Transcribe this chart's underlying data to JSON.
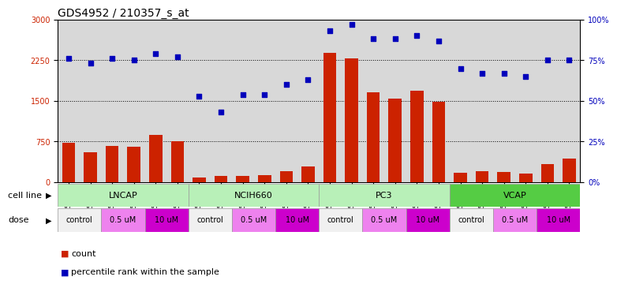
{
  "title": "GDS4952 / 210357_s_at",
  "samples": [
    "GSM1359772",
    "GSM1359773",
    "GSM1359774",
    "GSM1359775",
    "GSM1359776",
    "GSM1359777",
    "GSM1359760",
    "GSM1359761",
    "GSM1359762",
    "GSM1359763",
    "GSM1359764",
    "GSM1359765",
    "GSM1359778",
    "GSM1359779",
    "GSM1359780",
    "GSM1359781",
    "GSM1359782",
    "GSM1359783",
    "GSM1359766",
    "GSM1359767",
    "GSM1359768",
    "GSM1359769",
    "GSM1359770",
    "GSM1359771"
  ],
  "counts": [
    730,
    560,
    670,
    660,
    870,
    760,
    90,
    120,
    110,
    130,
    200,
    290,
    2380,
    2280,
    1660,
    1540,
    1690,
    1480,
    180,
    200,
    185,
    155,
    340,
    430
  ],
  "percentiles": [
    76,
    73,
    76,
    75,
    79,
    77,
    53,
    43,
    54,
    54,
    60,
    63,
    93,
    97,
    88,
    88,
    90,
    87,
    70,
    67,
    67,
    65,
    75,
    75
  ],
  "cell_lines": [
    "LNCAP",
    "NCIH660",
    "PC3",
    "VCAP"
  ],
  "cell_line_color_light": "#b8f0b8",
  "cell_line_color_dark": "#55cc44",
  "dose_patterns": [
    {
      "label": "control",
      "color": "#f0f0f0"
    },
    {
      "label": "0.5 uM",
      "color": "#ee82ee"
    },
    {
      "label": "10 uM",
      "color": "#cc00cc"
    }
  ],
  "bar_color": "#cc2200",
  "dot_color": "#0000bb",
  "ylim_left": [
    0,
    3000
  ],
  "ylim_right": [
    0,
    100
  ],
  "yticks_left": [
    0,
    750,
    1500,
    2250,
    3000
  ],
  "yticks_right": [
    0,
    25,
    50,
    75,
    100
  ],
  "ytick_labels_right": [
    "0%",
    "25%",
    "50%",
    "75%",
    "100%"
  ],
  "grid_lines": [
    750,
    1500,
    2250
  ],
  "background_color": "#ffffff",
  "plot_bg_color": "#d8d8d8",
  "title_fontsize": 10,
  "tick_fontsize": 7,
  "sample_fontsize": 6
}
